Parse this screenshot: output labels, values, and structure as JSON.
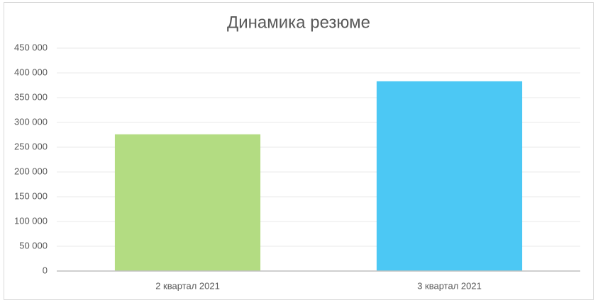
{
  "chart_data": {
    "type": "bar",
    "title": "Динамика резюме",
    "categories": [
      "2 квартал 2021",
      "3 квартал 2021"
    ],
    "values": [
      276000,
      383000
    ],
    "colors": [
      "#b3dc82",
      "#4cc8f4"
    ],
    "ylim": [
      0,
      450000
    ],
    "yticks": [
      0,
      {
        "value": 50000,
        "label": "50 000"
      },
      {
        "value": 100000,
        "label": "100 000"
      },
      {
        "value": 150000,
        "label": "150 000"
      },
      {
        "value": 200000,
        "label": "200 000"
      },
      {
        "value": 250000,
        "label": "250 000"
      },
      {
        "value": 300000,
        "label": "300 000"
      },
      {
        "value": 350000,
        "label": "350 000"
      },
      {
        "value": 400000,
        "label": "400 000"
      },
      {
        "value": 450000,
        "label": "450 000"
      }
    ],
    "grid": true
  }
}
